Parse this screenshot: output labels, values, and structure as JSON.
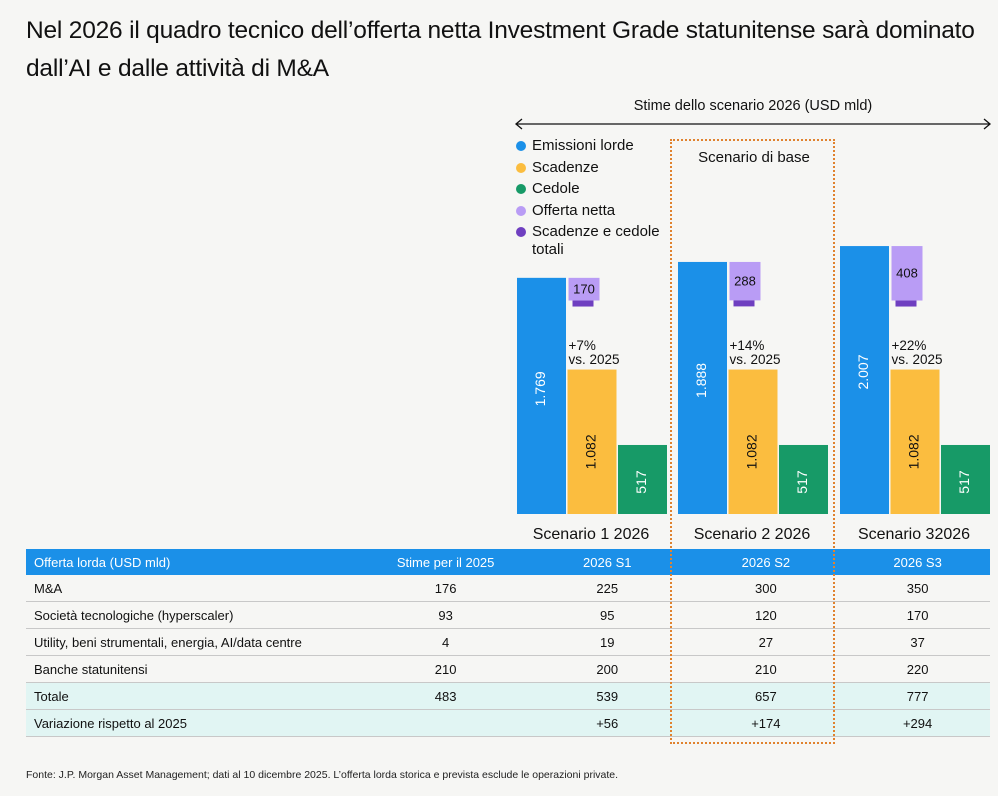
{
  "title": "Nel 2026 il quadro tecnico dell’offerta netta Investment Grade statunitense sarà dominato dall’AI e dalle attività di M&A",
  "estimates_label": "Stime dello scenario 2026 (USD mld)",
  "base_scenario_label": "Scenario di base",
  "legend": [
    {
      "label": "Emissioni lorde",
      "color": "#1b90e8"
    },
    {
      "label": "Scadenze",
      "color": "#fbbd3f"
    },
    {
      "label": "Cedole",
      "color": "#179a67"
    },
    {
      "label": "Offerta netta",
      "color": "#b99cf5"
    },
    {
      "label": "Scadenze e cedole totali",
      "color": "#6f3fc0"
    }
  ],
  "chart_data": {
    "type": "bar",
    "categories": [
      "Scenario 1 2026",
      "Scenario 2 2026",
      "Scenario 32026"
    ],
    "series": [
      {
        "name": "Emissioni lorde",
        "values": [
          1769,
          1888,
          2007
        ],
        "labels": [
          "1.769",
          "1.888",
          "2.007"
        ]
      },
      {
        "name": "Scadenze",
        "values": [
          1082,
          1082,
          1082
        ],
        "labels": [
          "1.082",
          "1.082",
          "1.082"
        ]
      },
      {
        "name": "Cedole",
        "values": [
          517,
          517,
          517
        ],
        "labels": [
          "517",
          "517",
          "517"
        ]
      },
      {
        "name": "Offerta netta",
        "values": [
          170,
          288,
          408
        ],
        "labels": [
          "170",
          "288",
          "408"
        ]
      }
    ],
    "annotations": [
      [
        "+7%",
        "vs. 2025"
      ],
      [
        "+14%",
        "vs. 2025"
      ],
      [
        "+22%",
        "vs. 2025"
      ]
    ]
  },
  "table": {
    "headers": [
      "Offerta lorda (USD mld)",
      "Stime per il 2025",
      "2026 S1",
      "2026 S2",
      "2026 S3"
    ],
    "rows": [
      [
        "M&A",
        "176",
        "225",
        "300",
        "350"
      ],
      [
        "Società tecnologiche (hyperscaler)",
        "93",
        "95",
        "120",
        "170"
      ],
      [
        "Utility, beni strumentali, energia, AI/data centre",
        "4",
        "19",
        "27",
        "37"
      ],
      [
        "Banche statunitensi",
        "210",
        "200",
        "210",
        "220"
      ],
      [
        "Totale",
        "483",
        "539",
        "657",
        "777"
      ],
      [
        "Variazione rispetto al 2025",
        "",
        "+56",
        "+174",
        "+294"
      ]
    ]
  },
  "source": "Fonte: J.P. Morgan Asset Management; dati al 10 dicembre 2025. L’offerta lorda storica e prevista esclude le operazioni private."
}
